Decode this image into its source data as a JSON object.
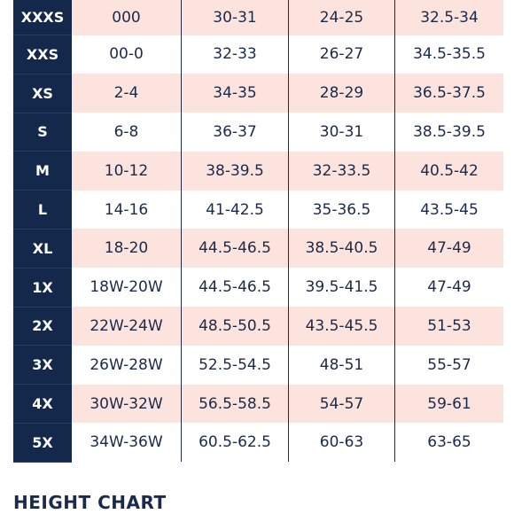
{
  "size_chart": {
    "rows": [
      {
        "size": "XXXS",
        "values": [
          "000",
          "30-31",
          "24-25",
          "32.5-34"
        ]
      },
      {
        "size": "XXS",
        "values": [
          "00-0",
          "32-33",
          "26-27",
          "34.5-35.5"
        ]
      },
      {
        "size": "XS",
        "values": [
          "2-4",
          "34-35",
          "28-29",
          "36.5-37.5"
        ]
      },
      {
        "size": "S",
        "values": [
          "6-8",
          "36-37",
          "30-31",
          "38.5-39.5"
        ]
      },
      {
        "size": "M",
        "values": [
          "10-12",
          "38-39.5",
          "32-33.5",
          "40.5-42"
        ]
      },
      {
        "size": "L",
        "values": [
          "14-16",
          "41-42.5",
          "35-36.5",
          "43.5-45"
        ]
      },
      {
        "size": "XL",
        "values": [
          "18-20",
          "44.5-46.5",
          "38.5-40.5",
          "47-49"
        ]
      },
      {
        "size": "1X",
        "values": [
          "18W-20W",
          "44.5-46.5",
          "39.5-41.5",
          "47-49"
        ]
      },
      {
        "size": "2X",
        "values": [
          "22W-24W",
          "48.5-50.5",
          "43.5-45.5",
          "51-53"
        ]
      },
      {
        "size": "3X",
        "values": [
          "26W-28W",
          "52.5-54.5",
          "48-51",
          "55-57"
        ]
      },
      {
        "size": "4X",
        "values": [
          "30W-32W",
          "56.5-58.5",
          "54-57",
          "59-61"
        ]
      },
      {
        "size": "5X",
        "values": [
          "34W-36W",
          "60.5-62.5",
          "60-63",
          "63-65"
        ]
      }
    ]
  },
  "height_chart": {
    "title": "HEIGHT CHART"
  },
  "colors": {
    "navy": "#14284b",
    "row_shade": "#fde3de",
    "text": "#1a2a4a"
  }
}
